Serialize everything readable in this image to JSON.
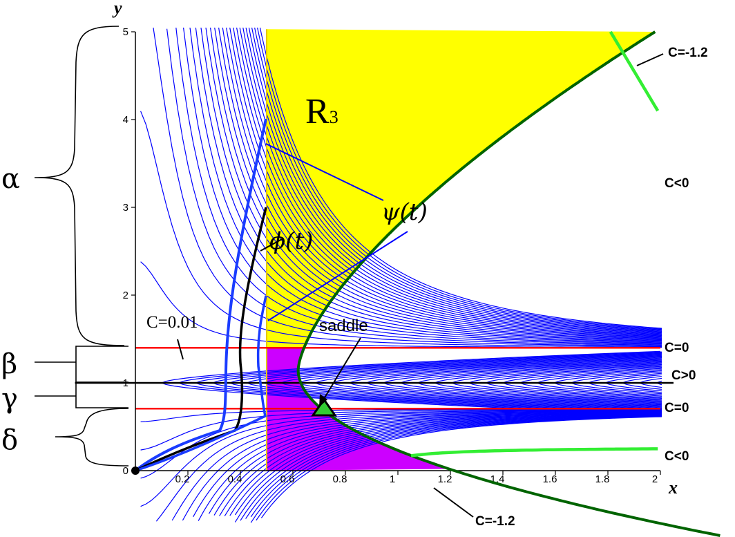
{
  "axes": {
    "x_label": "x",
    "y_label": "y",
    "x_ticks": [
      "0.2",
      "0.4",
      "0.6",
      "0.8",
      "1",
      "1.2",
      "1.4",
      "1.6",
      "1.8",
      "2"
    ],
    "y_ticks": [
      "0",
      "1",
      "2",
      "3",
      "4",
      "5"
    ],
    "xlim": [
      0,
      2
    ],
    "ylim": [
      0,
      5
    ]
  },
  "regions": {
    "r3_label": "R",
    "r3_subscript": "3",
    "yellow_color": "#ffff00",
    "magenta_color": "#cc00ff"
  },
  "braces": {
    "alpha": "α",
    "beta": "β",
    "gamma": "γ",
    "delta": "δ"
  },
  "labels": {
    "c_neg12_top": "C=-1.2",
    "c_lt0_upper": "C<0",
    "c_eq0_upper": "C=0",
    "c_gt0": "C>0",
    "c_eq0_lower": "C=0",
    "c_lt0_lower": "C<0",
    "c_neg12_bottom": "C=-1.2",
    "c_001": "C=0.01",
    "saddle": "saddle",
    "psi": "ψ(t)",
    "phi": "ϕ(t)"
  },
  "colors": {
    "level_curves": "#0000ff",
    "separatrix": "#006400",
    "c_neg12": "#33ee33",
    "horizontal_lines": "#ff0000",
    "saddle_marker": "#33cc33"
  }
}
